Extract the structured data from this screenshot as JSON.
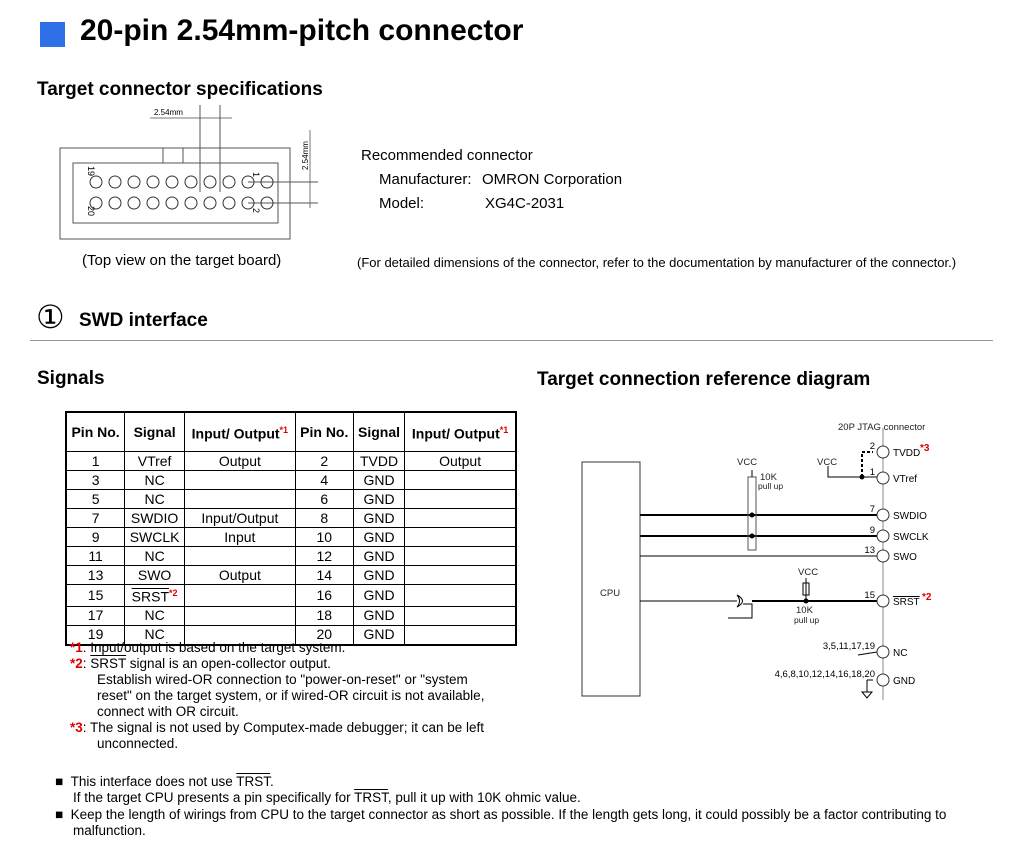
{
  "title": "20-pin 2.54mm-pitch connector",
  "accent_color": "#2f6fe8",
  "spec": {
    "heading": "Target connector specifications",
    "pitch_label_h": "2.54mm",
    "pitch_label_v": "2.54mm",
    "pin19": "19",
    "pin20": "20",
    "pin1": "1",
    "pin2": "2",
    "caption": "(Top view on the target board)",
    "recommended": "Recommended connector",
    "manufacturer_label": "Manufacturer:",
    "manufacturer": "OMRON Corporation",
    "model_label": "Model:",
    "model": "XG4C-2031",
    "note": "(For detailed dimensions of the connector, refer to the documentation by manufacturer of the connector.)"
  },
  "swd": {
    "number": "①",
    "heading": "SWD interface"
  },
  "signals": {
    "heading": "Signals",
    "headers": [
      "Pin No.",
      "Signal",
      "Input/ Output",
      "Pin No.",
      "Signal",
      "Input/ Output"
    ],
    "header_mark": "*1",
    "rows": [
      [
        "1",
        "VTref",
        "Output",
        "2",
        "TVDD",
        "Output"
      ],
      [
        "3",
        "NC",
        "",
        "4",
        "GND",
        ""
      ],
      [
        "5",
        "NC",
        "",
        "6",
        "GND",
        ""
      ],
      [
        "7",
        "SWDIO",
        "Input/Output",
        "8",
        "GND",
        ""
      ],
      [
        "9",
        "SWCLK",
        "Input",
        "10",
        "GND",
        ""
      ],
      [
        "11",
        "NC",
        "",
        "12",
        "GND",
        ""
      ],
      [
        "13",
        "SWO",
        "Output",
        "14",
        "GND",
        ""
      ],
      [
        "15",
        "SRST",
        "",
        "16",
        "GND",
        ""
      ],
      [
        "17",
        "NC",
        "",
        "18",
        "GND",
        ""
      ],
      [
        "19",
        "NC",
        "",
        "20",
        "GND",
        ""
      ]
    ],
    "srst_mark": "*2"
  },
  "notes": [
    {
      "mark": "*1",
      "text": ": Input/output is based on the target system."
    },
    {
      "mark": "*2",
      "signal": "SRST",
      "text": " signal is an open-collector output.",
      "extra": [
        "Establish wired-OR connection to \"power-on-reset\" or \"system",
        "reset\" on the target system, or if wired-OR circuit is not available,",
        "connect with OR circuit."
      ]
    },
    {
      "mark": "*3",
      "text": ": The signal is not used by Computex-made debugger; it can be left",
      "extra": [
        "unconnected."
      ]
    }
  ],
  "diagram": {
    "heading": "Target connection reference diagram",
    "connector": "20P  JTAG connector",
    "cpu": "CPU",
    "vcc": "VCC",
    "pullup_r": "10K",
    "pullup": "pull up",
    "pins": [
      {
        "num": "2",
        "label": "TVDD",
        "mark": "*3"
      },
      {
        "num": "1",
        "label": "VTref"
      },
      {
        "num": "7",
        "label": "SWDIO"
      },
      {
        "num": "9",
        "label": "SWCLK"
      },
      {
        "num": "13",
        "label": "SWO"
      },
      {
        "num": "15",
        "label": "SRST",
        "mark": "*2"
      },
      {
        "num": "3,5,11,17,19",
        "label": "NC"
      },
      {
        "num": "4,6,8,10,12,14,16,18,20",
        "label": "GND"
      }
    ]
  },
  "bullets": [
    {
      "lines": [
        "This interface does not use ",
        "TRST",
        "."
      ]
    },
    {
      "lines": [
        "If the target CPU presents a pin specifically for ",
        "TRST",
        ", pull it up with 10K ohmic value."
      ]
    },
    {
      "lines": [
        "Keep the length of wirings from CPU to the target connector as short as possible. If the length gets long, it could possibly be a factor contributing to",
        "malfunction."
      ]
    }
  ]
}
